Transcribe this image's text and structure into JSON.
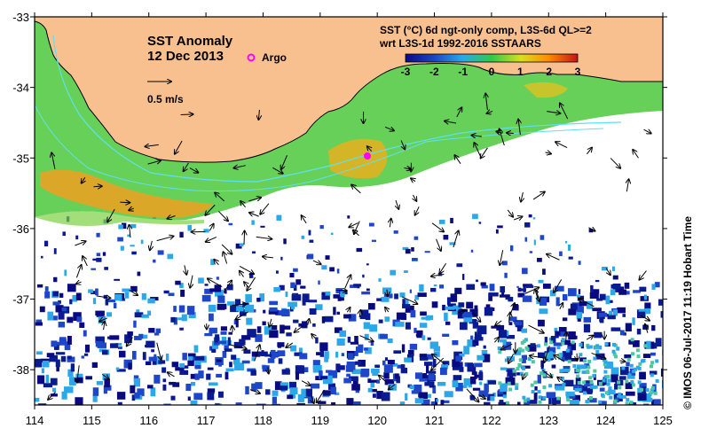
{
  "map": {
    "title": "SST Anomaly",
    "date": "12 Dec 2013",
    "argo_label": "Argo",
    "scale_label": "0.5 m/s",
    "colorbar_title_line1": "SST (°C) 6d ngt-only comp, L3S-6d QL>=2",
    "colorbar_title_line2": "wrt L3S-1d 1992-2016 SSTAARS",
    "colorbar_ticks": [
      "-3",
      "-2",
      "-1",
      "0",
      "1",
      "2",
      "3"
    ],
    "credit": "© IMOS 06-Jul-2017 11:19 Hobart Time",
    "x_ticks": [
      "114",
      "115",
      "116",
      "117",
      "118",
      "119",
      "120",
      "121",
      "122",
      "123",
      "124",
      "125"
    ],
    "y_ticks": [
      "-33",
      "-34",
      "-35",
      "-36",
      "-37",
      "-38"
    ],
    "colors": {
      "land": "#f9c08f",
      "coast": "#000000",
      "argo": "#ff00ff",
      "contour": "#5fe0f0",
      "anom_neg3": "#0a0a80",
      "anom_neg2": "#1e46c8",
      "anom_neg1": "#2ca8e8",
      "anom_0": "#32c84a",
      "anom_1": "#9ad21e",
      "anom_2": "#ff8c00",
      "anom_3": "#c81414"
    }
  }
}
